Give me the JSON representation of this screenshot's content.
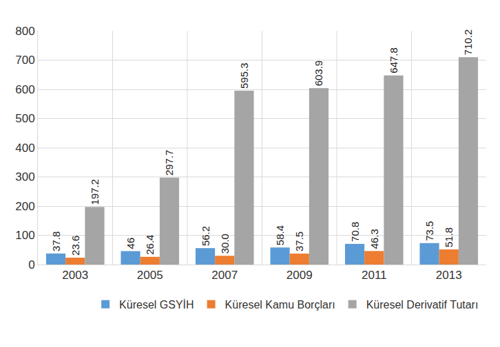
{
  "chart_data": {
    "type": "bar",
    "categories": [
      "2003",
      "2005",
      "2007",
      "2009",
      "2011",
      "2013"
    ],
    "series": [
      {
        "name": "Küresel GSYİH",
        "color": "#5b9bd5",
        "values": [
          37.8,
          46,
          56.2,
          58.4,
          70.8,
          73.5
        ],
        "value_labels": [
          "37.8",
          "46",
          "56.2",
          "58.4",
          "70.8",
          "73.5"
        ]
      },
      {
        "name": "Küresel Kamu Borçları",
        "color": "#ed7d31",
        "values": [
          23.6,
          26.4,
          30.0,
          37.5,
          46.3,
          51.8
        ],
        "value_labels": [
          "23.6",
          "26.4",
          "30.0",
          "37.5",
          "46.3",
          "51.8"
        ]
      },
      {
        "name": "Küresel Derivatif Tutarı",
        "color": "#a5a5a5",
        "values": [
          197.2,
          297.7,
          595.3,
          603.9,
          647.8,
          710.2
        ],
        "value_labels": [
          "197.2",
          "297.7",
          "595.3",
          "603.9",
          "647.8",
          "710.2"
        ]
      }
    ],
    "ylim": [
      0,
      800
    ],
    "yticks": [
      0,
      100,
      200,
      300,
      400,
      500,
      600,
      700,
      800
    ],
    "grid": true,
    "legend": "bottom",
    "data_labels": true
  }
}
